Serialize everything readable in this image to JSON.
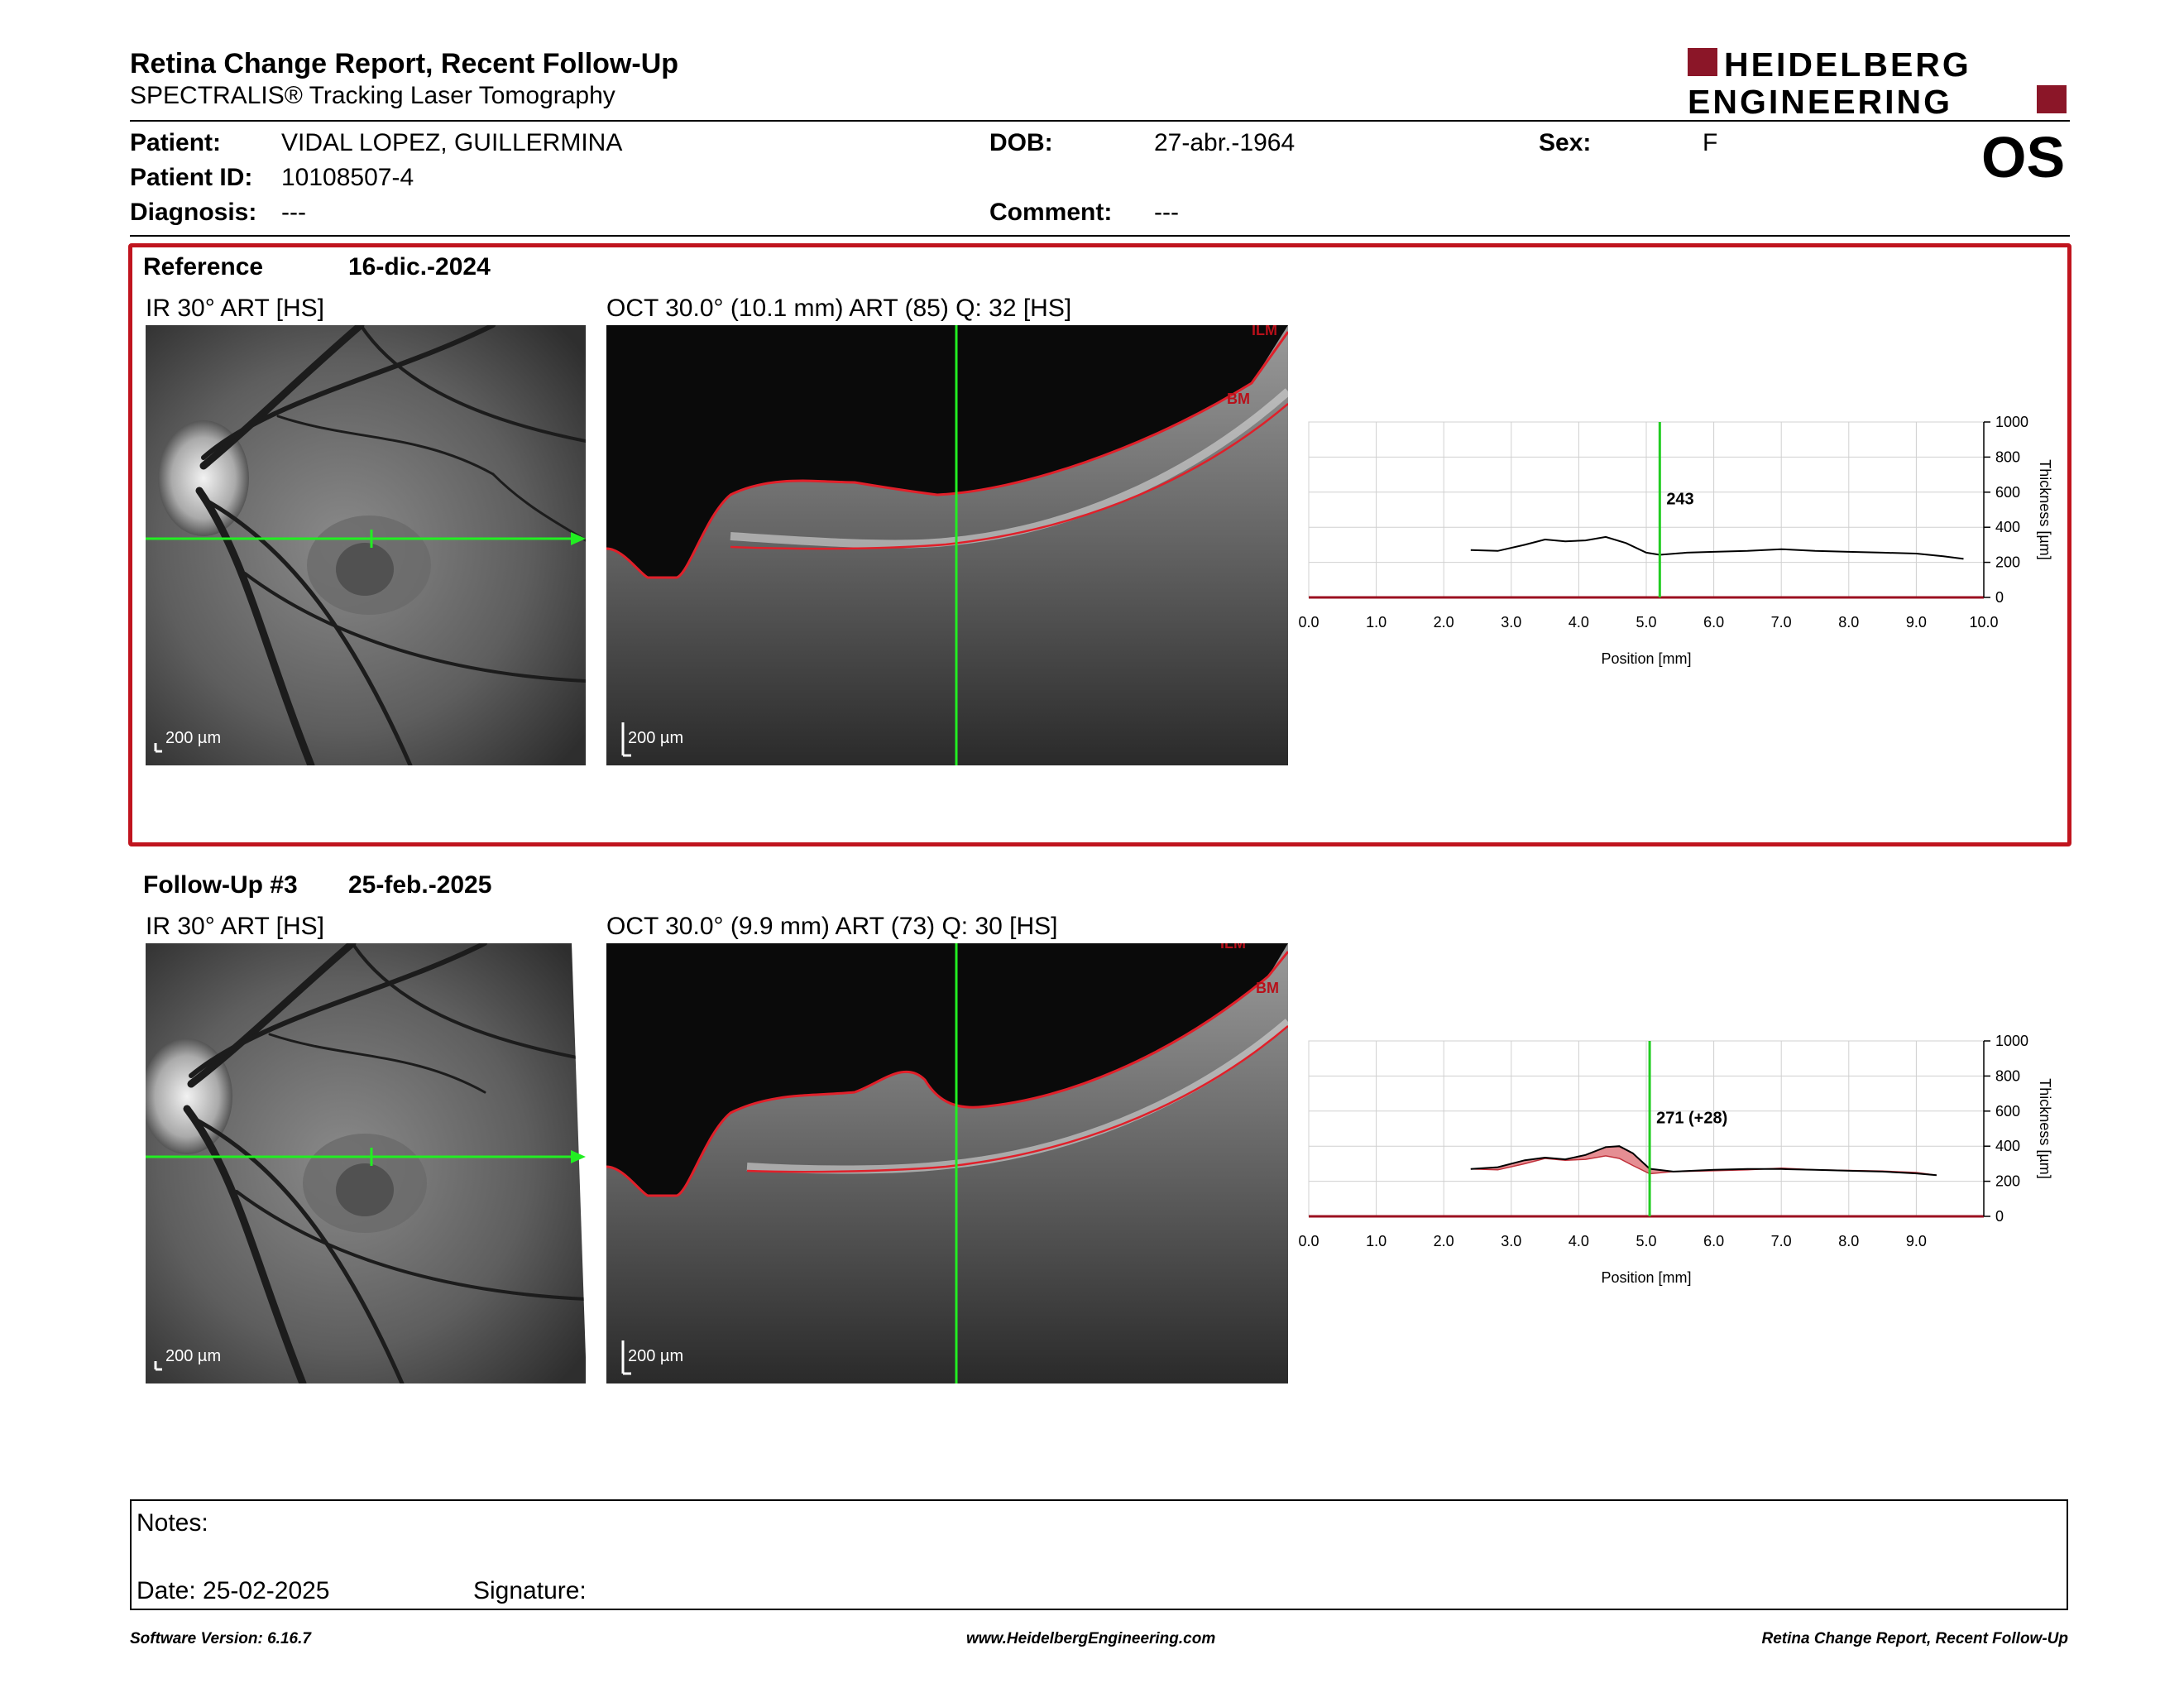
{
  "header": {
    "title": "Retina Change Report, Recent Follow-Up",
    "subtitle": "SPECTRALIS® Tracking Laser Tomography",
    "logo_line1": "HEIDELBERG",
    "logo_line2": "ENGINEERING",
    "brand_color": "#8b1628"
  },
  "patient": {
    "patient_label": "Patient:",
    "patient_value": "VIDAL LOPEZ, GUILLERMINA",
    "id_label": "Patient ID:",
    "id_value": "10108507-4",
    "diagnosis_label": "Diagnosis:",
    "diagnosis_value": "---",
    "dob_label": "DOB:",
    "dob_value": "27-abr.-1964",
    "comment_label": "Comment:",
    "comment_value": "---",
    "sex_label": "Sex:",
    "sex_value": "F",
    "eye": "OS"
  },
  "reference": {
    "label": "Reference",
    "date": "16-dic.-2024",
    "ir_label": "IR 30° ART [HS]",
    "oct_label": "OCT 30.0° (10.1 mm) ART (85) Q: 32 [HS]",
    "ir_scale": "200 µm",
    "oct_scale": "200 µm",
    "layer_top": "ILM",
    "layer_bottom": "BM",
    "box_color": "#c0141e"
  },
  "followup": {
    "label": "Follow-Up #3",
    "date": "25-feb.-2025",
    "ir_label": "IR 30° ART [HS]",
    "oct_label": "OCT 30.0° (9.9 mm) ART (73) Q: 30 [HS]",
    "ir_scale": "200 µm",
    "oct_scale": "200 µm",
    "layer_top": "ILM",
    "layer_bottom": "BM"
  },
  "chart_data": [
    {
      "type": "line",
      "xlabel": "Position [mm]",
      "ylabel": "Thickness [µm]",
      "xlim": [
        0,
        10.0
      ],
      "ylim": [
        0,
        1000
      ],
      "x_ticks": [
        "0.0",
        "1.0",
        "2.0",
        "3.0",
        "4.0",
        "5.0",
        "6.0",
        "7.0",
        "8.0",
        "9.0",
        "10.0"
      ],
      "y_ticks": [
        "0",
        "200",
        "400",
        "600",
        "800",
        "1000"
      ],
      "grid": true,
      "cursor_x": 5.2,
      "cursor_label": "243",
      "series": [
        {
          "x": [
            2.4,
            2.8,
            3.2,
            3.5,
            3.8,
            4.1,
            4.4,
            4.7,
            5.0,
            5.2,
            5.6,
            6.0,
            6.5,
            7.0,
            7.5,
            8.0,
            8.5,
            9.0,
            9.4,
            9.7
          ],
          "values": [
            270,
            265,
            300,
            330,
            320,
            325,
            345,
            310,
            255,
            243,
            255,
            260,
            265,
            275,
            265,
            260,
            255,
            250,
            235,
            220
          ]
        }
      ]
    },
    {
      "type": "area",
      "xlabel": "Position [mm]",
      "ylabel": "Thickness [µm]",
      "xlim": [
        0,
        10.0
      ],
      "ylim": [
        0,
        1000
      ],
      "x_ticks": [
        "0.0",
        "1.0",
        "2.0",
        "3.0",
        "4.0",
        "5.0",
        "6.0",
        "7.0",
        "8.0",
        "9.0"
      ],
      "y_ticks": [
        "0",
        "200",
        "400",
        "600",
        "800",
        "1000"
      ],
      "grid": true,
      "cursor_x": 5.05,
      "cursor_label": "271 (+28)",
      "series": [
        {
          "x": [
            2.4,
            2.8,
            3.2,
            3.5,
            3.8,
            4.1,
            4.4,
            4.6,
            4.8,
            5.05,
            5.4,
            6.0,
            6.5,
            7.0,
            7.5,
            8.0,
            8.5,
            9.0,
            9.3
          ],
          "values": [
            270,
            280,
            320,
            335,
            325,
            350,
            395,
            400,
            360,
            271,
            255,
            265,
            270,
            270,
            265,
            260,
            255,
            245,
            235
          ]
        },
        {
          "x": [
            2.4,
            2.8,
            3.2,
            3.5,
            3.8,
            4.1,
            4.4,
            4.6,
            4.8,
            5.05,
            5.4,
            6.0,
            6.5,
            7.0,
            7.5,
            8.0,
            8.5,
            9.0,
            9.3
          ],
          "values": [
            270,
            265,
            300,
            330,
            320,
            325,
            345,
            330,
            290,
            243,
            255,
            260,
            265,
            275,
            265,
            262,
            258,
            250,
            235
          ]
        }
      ]
    }
  ],
  "notes": {
    "notes_label": "Notes:",
    "date_label": "Date: 25-02-2025",
    "signature_label": "Signature:"
  },
  "footer": {
    "left": "Software Version: 6.16.7",
    "center": "www.HeidelbergEngineering.com",
    "right": "Retina Change Report, Recent Follow-Up"
  }
}
